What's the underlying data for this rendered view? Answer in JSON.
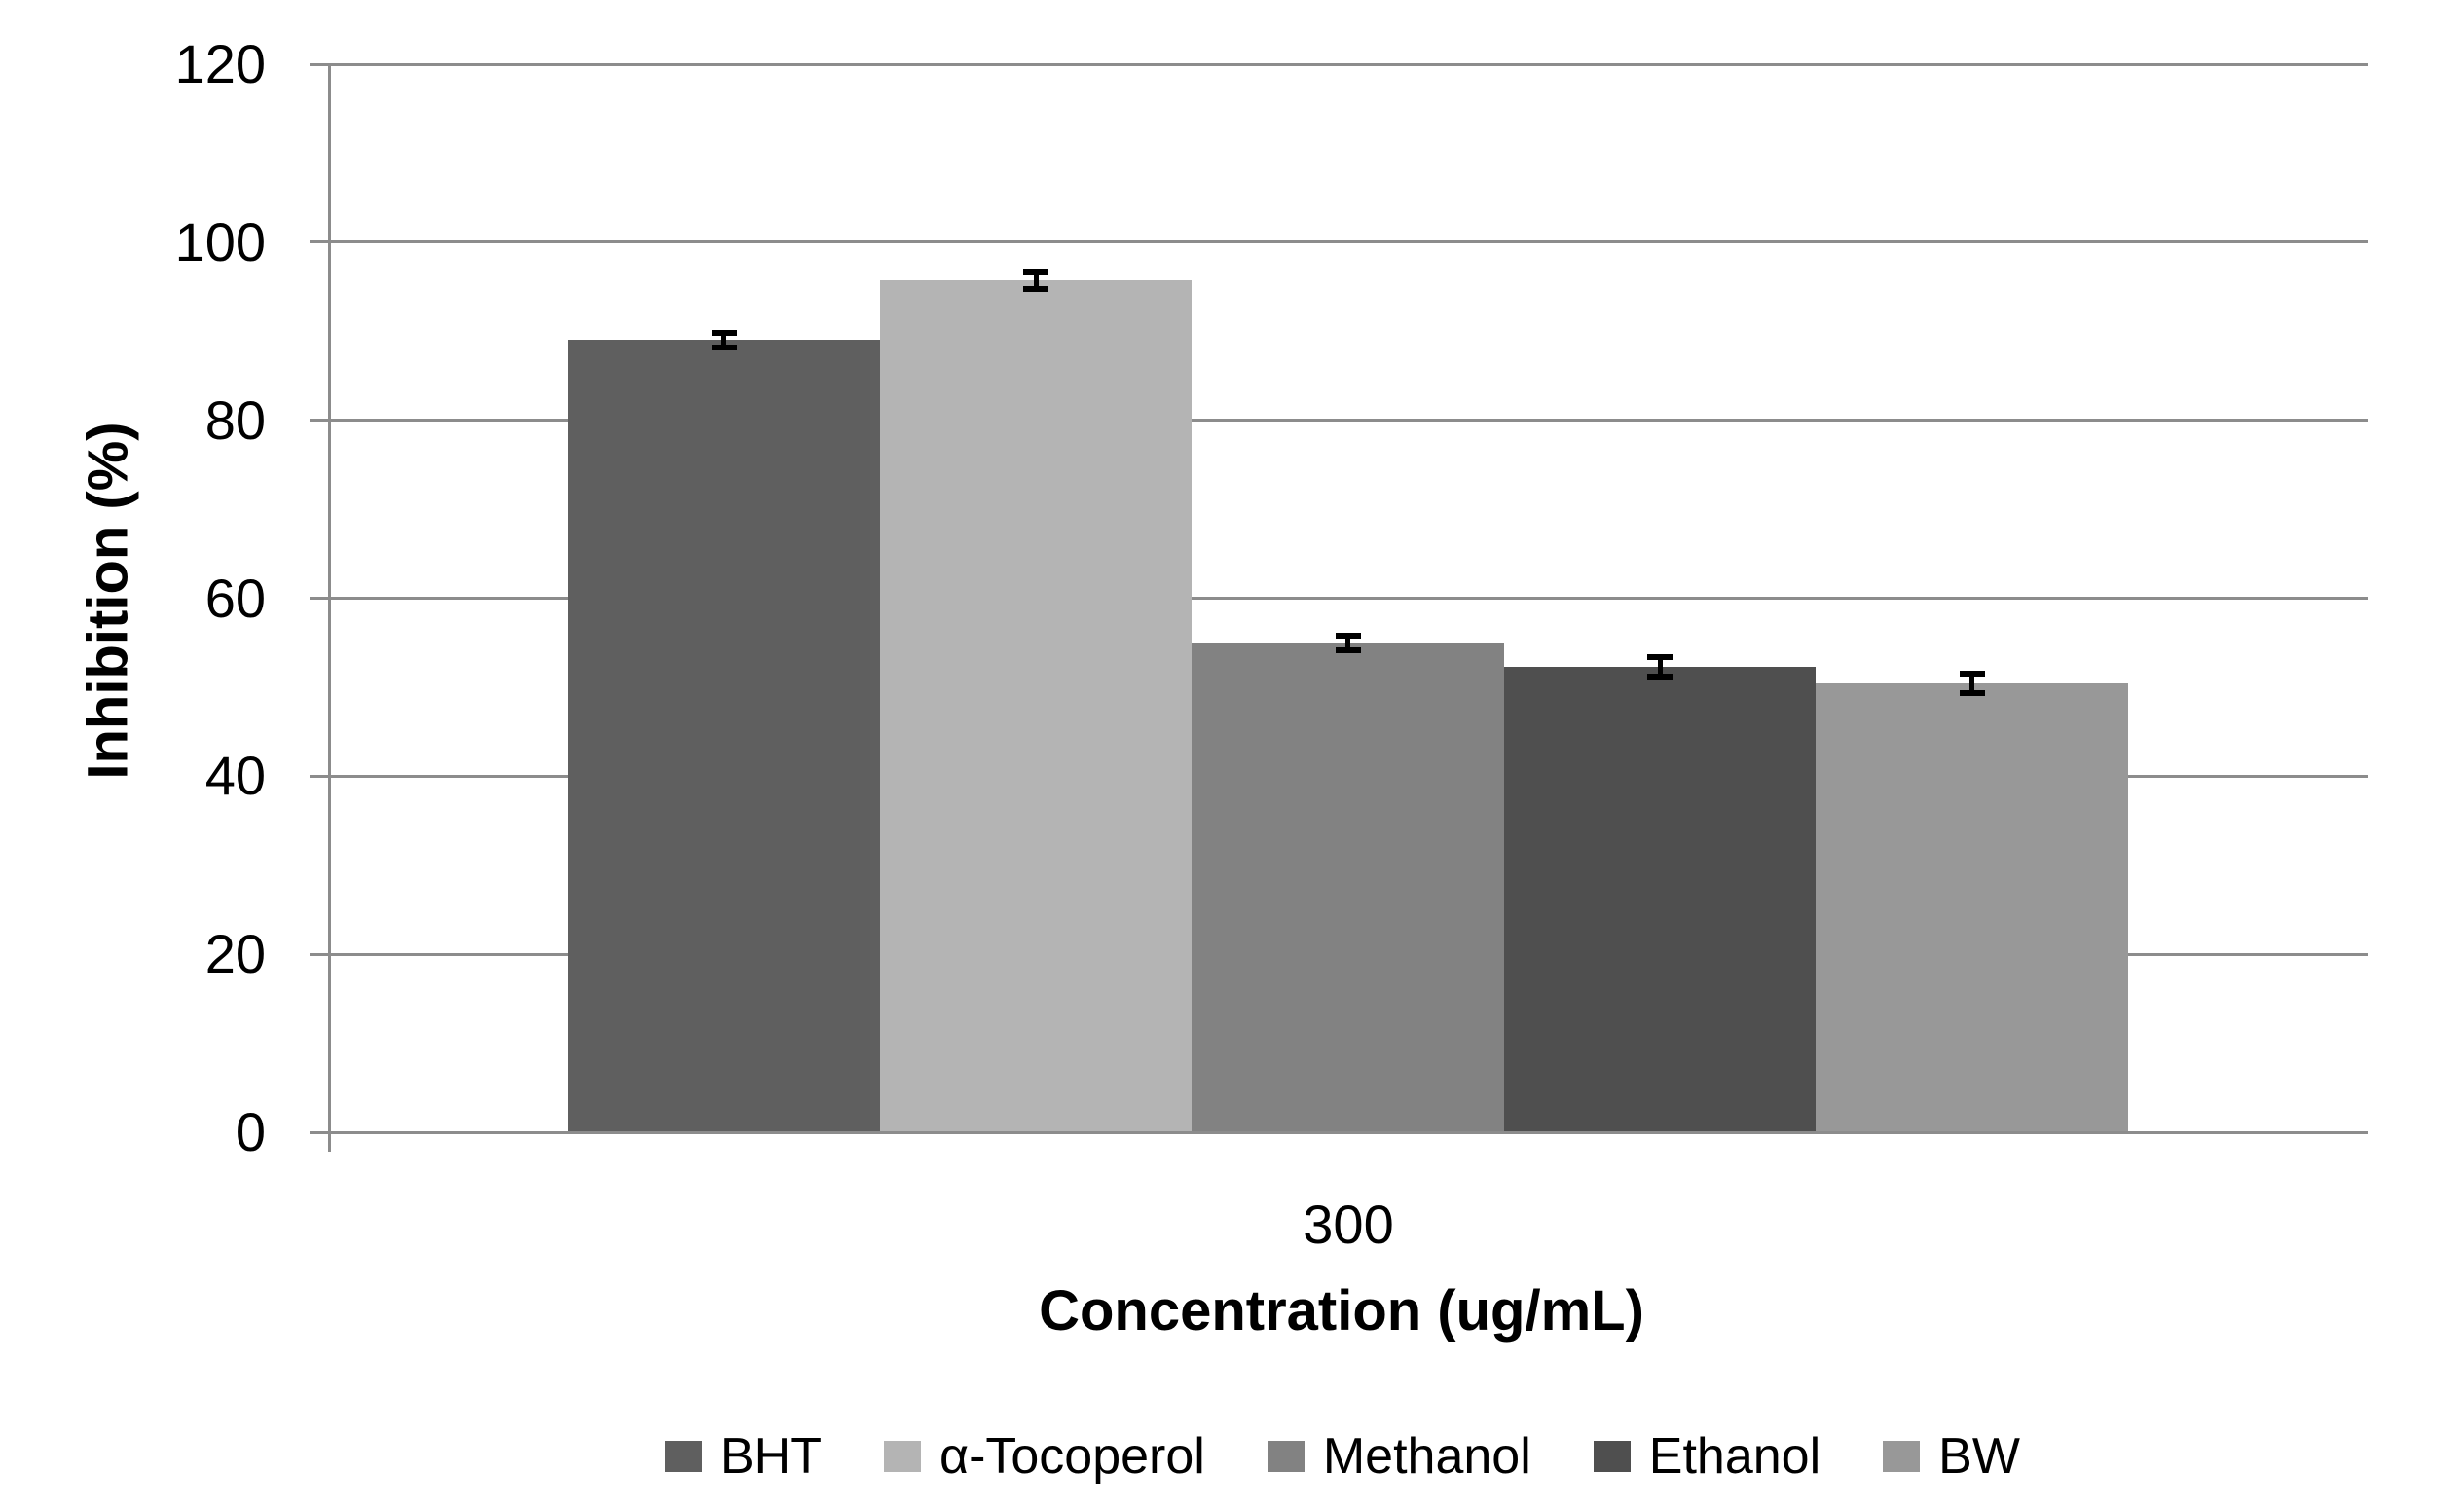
{
  "chart_data": {
    "type": "bar",
    "title": "",
    "xlabel": "Concentration (ug/mL)",
    "ylabel": "Inhibition (%)",
    "categories": [
      "300"
    ],
    "series": [
      {
        "name": "BHT",
        "value": 89.0,
        "error": 0.8,
        "color": "#5F5F5F"
      },
      {
        "name": "α-Tocoperol",
        "value": 95.7,
        "error": 1.0,
        "color": "#B4B4B4"
      },
      {
        "name": "Methanol",
        "value": 55.0,
        "error": 0.8,
        "color": "#828282"
      },
      {
        "name": "Ethanol",
        "value": 52.3,
        "error": 1.1,
        "color": "#4F4F4F"
      },
      {
        "name": "BW",
        "value": 50.4,
        "error": 1.1,
        "color": "#989898"
      }
    ],
    "ylim": [
      0,
      120
    ],
    "yticks": [
      0,
      20,
      40,
      60,
      80,
      100,
      120
    ],
    "grid": true,
    "legend_position": "bottom",
    "axis_color": "#8C8C8C",
    "gridline_color": "#8C8C8C",
    "error_bar_color": "#000000",
    "text_color": "#000000"
  }
}
